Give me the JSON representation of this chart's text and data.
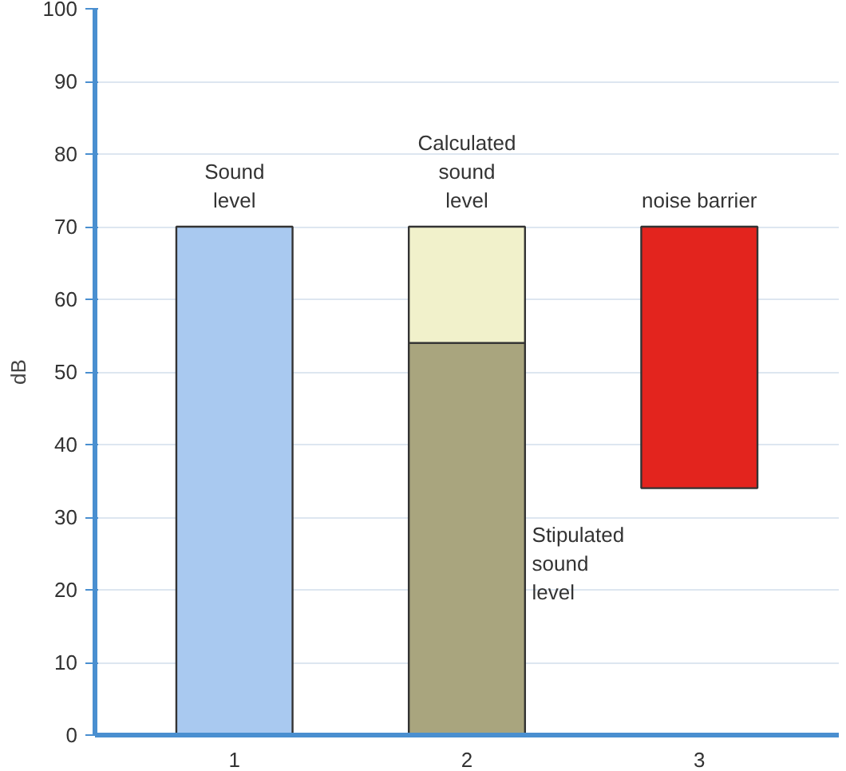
{
  "chart_data": {
    "type": "bar",
    "ylabel": "dB",
    "categories": [
      "1",
      "2",
      "3"
    ],
    "stacked": true,
    "series": [
      {
        "colors": [
          "#a9c9f0",
          "#a9a57e",
          null
        ],
        "values": [
          70,
          54,
          null
        ]
      },
      {
        "color": "#f1f1cb",
        "values": [
          null,
          16,
          null
        ]
      },
      {
        "color": "#e3241e",
        "values": [
          null,
          null,
          36
        ],
        "base": [
          null,
          null,
          34
        ]
      }
    ],
    "ylim": [
      0,
      100
    ],
    "yticks": [
      0,
      10,
      20,
      30,
      40,
      50,
      60,
      70,
      80,
      90,
      100
    ],
    "grid": "y",
    "annotations": [
      "Sound\nlevel",
      "Calculated\nsound\nlevel",
      "noise barrier",
      "Stipulated\nsound\nlevel"
    ]
  }
}
